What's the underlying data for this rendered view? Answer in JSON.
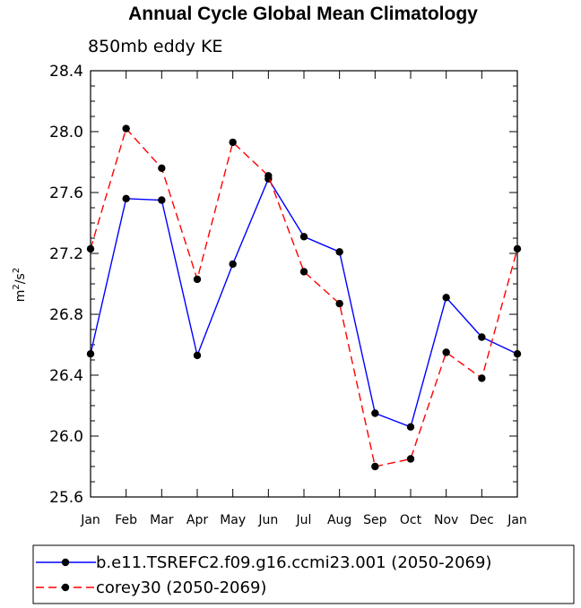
{
  "chart_data": {
    "type": "line",
    "title": "Annual Cycle Global Mean Climatology",
    "subtitle": "850mb eddy KE",
    "ylabel": "m²/s²",
    "ylabel_base": "m",
    "ylabel_exp1": "2",
    "ylabel_mid": "/s",
    "ylabel_exp2": "2",
    "xlabel": "",
    "categories": [
      "Jan",
      "Feb",
      "Mar",
      "Apr",
      "May",
      "Jun",
      "Jul",
      "Aug",
      "Sep",
      "Oct",
      "Nov",
      "Dec",
      "Jan"
    ],
    "ylim": [
      25.6,
      28.4
    ],
    "yticks": [
      "25.6",
      "26.0",
      "26.4",
      "26.8",
      "27.2",
      "27.6",
      "28.0",
      "28.4"
    ],
    "series": [
      {
        "name": "b.e11.TSREFC2.f09.g16.ccmi23.001 (2050-2069)",
        "color": "#0000ff",
        "dash": "solid",
        "values": [
          26.54,
          27.56,
          27.55,
          26.53,
          27.13,
          27.69,
          27.31,
          27.21,
          26.15,
          26.06,
          26.91,
          26.65,
          26.54
        ]
      },
      {
        "name": "corey30 (2050-2069)",
        "color": "#ff0000",
        "dash": "dashed",
        "values": [
          27.23,
          28.02,
          27.76,
          27.03,
          27.93,
          27.71,
          27.08,
          26.87,
          25.8,
          25.85,
          26.55,
          26.38,
          27.23
        ]
      }
    ],
    "grid": false,
    "legend_position": "bottom"
  }
}
